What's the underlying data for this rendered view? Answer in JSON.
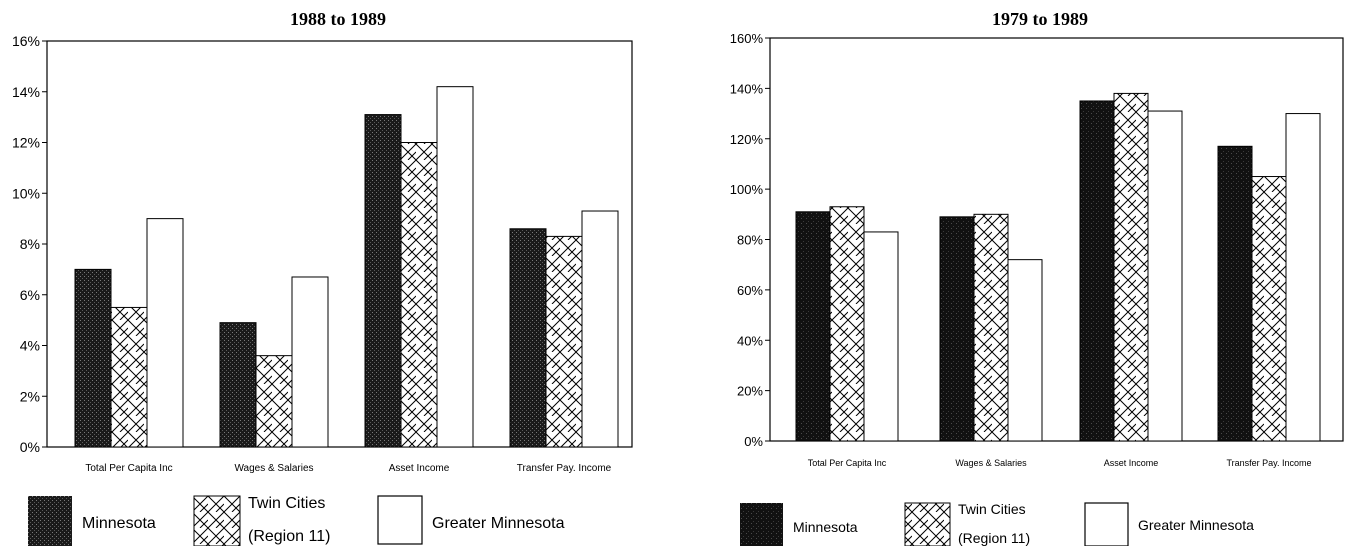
{
  "chart_data": [
    {
      "type": "bar",
      "title": "1988 to 1989",
      "categories": [
        "Total Per Capita Inc",
        "Wages & Salaries",
        "Asset Income",
        "Transfer Pay. Income"
      ],
      "series": [
        {
          "name": "Minnesota",
          "values": [
            7.0,
            4.9,
            13.1,
            8.6
          ]
        },
        {
          "name": "Twin Cities (Region 11)",
          "values": [
            5.5,
            3.6,
            12.0,
            8.3
          ]
        },
        {
          "name": "Greater Minnesota",
          "values": [
            9.0,
            6.7,
            14.2,
            9.3
          ]
        }
      ],
      "ylim": [
        0,
        16
      ],
      "yticks": [
        "0%",
        "2%",
        "4%",
        "6%",
        "8%",
        "10%",
        "12%",
        "14%",
        "16%"
      ],
      "legend": {
        "items": [
          "Minnesota",
          "Twin Cities",
          "(Region 11)",
          "Greater Minnesota"
        ],
        "placement": "bottom"
      },
      "grid": false
    },
    {
      "type": "bar",
      "title": "1979 to 1989",
      "categories": [
        "Total Per Capita Inc",
        "Wages & Salaries",
        "Asset Income",
        "Transfer Pay. Income"
      ],
      "series": [
        {
          "name": "Minnesota",
          "values": [
            91,
            89,
            135,
            117
          ]
        },
        {
          "name": "Twin Cities (Region 11)",
          "values": [
            93,
            90,
            138,
            105
          ]
        },
        {
          "name": "Greater Minnesota",
          "values": [
            83,
            72,
            131,
            130
          ]
        }
      ],
      "ylim": [
        0,
        160
      ],
      "yticks": [
        "0%",
        "20%",
        "40%",
        "60%",
        "80%",
        "100%",
        "120%",
        "140%",
        "160%"
      ],
      "legend": {
        "items": [
          "Minnesota",
          "Twin Cities",
          "(Region 11)",
          "Greater Minnesota"
        ],
        "placement": "bottom"
      },
      "grid": false
    }
  ],
  "colors": {
    "minnesota_fill": "#1e1e1e",
    "twin_cities_fill": "#ffffff",
    "greater_fill": "#ffffff",
    "line": "#000000"
  }
}
